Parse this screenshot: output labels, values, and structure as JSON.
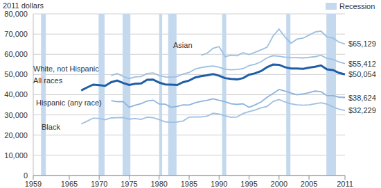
{
  "chart_data": {
    "type": "line",
    "y_label": "2011 dollars",
    "x": [
      1967,
      1968,
      1969,
      1970,
      1971,
      1972,
      1973,
      1974,
      1975,
      1976,
      1977,
      1978,
      1979,
      1980,
      1981,
      1982,
      1983,
      1984,
      1985,
      1986,
      1987,
      1988,
      1989,
      1990,
      1991,
      1992,
      1993,
      1994,
      1995,
      1996,
      1997,
      1998,
      1999,
      2000,
      2001,
      2002,
      2003,
      2004,
      2005,
      2006,
      2007,
      2008,
      2009,
      2010,
      2011
    ],
    "xlim": [
      1959,
      2011
    ],
    "xticks": [
      1959,
      1965,
      1970,
      1975,
      1980,
      1985,
      1990,
      1995,
      2000,
      2005,
      2011
    ],
    "ylim": [
      0,
      80000
    ],
    "yticks": [
      0,
      {
        "value": 10000,
        "label": "10,000"
      },
      {
        "value": 20000,
        "label": "20,000"
      },
      {
        "value": 30000,
        "label": "30,000"
      },
      {
        "value": 40000,
        "label": "40,000"
      },
      {
        "value": 50000,
        "label": "50,000"
      },
      {
        "value": 60000,
        "label": "60,000"
      },
      {
        "value": 70000,
        "label": "70,000"
      },
      {
        "value": 80000,
        "label": "80,000"
      }
    ],
    "grid": true,
    "recessions": {
      "name": "Recession",
      "color": "#c5d9ee",
      "periods": [
        [
          1960.3,
          1961.1
        ],
        [
          1969.9,
          1970.9
        ],
        [
          1973.9,
          1975.2
        ],
        [
          1980.0,
          1980.5
        ],
        [
          1981.5,
          1982.9
        ],
        [
          1990.5,
          1991.2
        ],
        [
          2001.2,
          2001.9
        ],
        [
          2007.9,
          2009.5
        ]
      ]
    },
    "series": [
      {
        "name": "Asian",
        "color": "#9dbfe3",
        "line_style": "thin",
        "values": [
          null,
          null,
          null,
          null,
          null,
          null,
          null,
          null,
          null,
          null,
          null,
          null,
          null,
          null,
          null,
          null,
          null,
          null,
          null,
          null,
          59500,
          60500,
          63000,
          63800,
          58800,
          59500,
          59300,
          60800,
          59900,
          61000,
          62200,
          63500,
          69000,
          72500,
          68500,
          65500,
          67500,
          68000,
          69500,
          71000,
          71500,
          68500,
          68000,
          66000,
          65129
        ],
        "value_labels": [
          null,
          null,
          null,
          null,
          null,
          null,
          null,
          null,
          null,
          null,
          null,
          null,
          null,
          null,
          null,
          null,
          null,
          null,
          null,
          null,
          null,
          null,
          null,
          null,
          null,
          null,
          null,
          null,
          null,
          null,
          null,
          null,
          null,
          null,
          null,
          null,
          null,
          null,
          null,
          null,
          null,
          null,
          null,
          null,
          "$65,129"
        ]
      },
      {
        "name": "White, not Hispanic",
        "color": "#9dbfe3",
        "line_style": "thin",
        "values": [
          null,
          null,
          null,
          null,
          null,
          49500,
          50500,
          49000,
          48000,
          48800,
          49000,
          50500,
          50800,
          49500,
          48800,
          48600,
          49000,
          50300,
          51000,
          52700,
          53400,
          53900,
          54200,
          53600,
          52600,
          52300,
          52500,
          52900,
          54400,
          55100,
          56300,
          58300,
          59300,
          59000,
          58600,
          58400,
          58300,
          58200,
          58500,
          58800,
          59500,
          58000,
          57500,
          56200,
          55412
        ],
        "value_labels": [
          null,
          null,
          null,
          null,
          null,
          null,
          null,
          null,
          null,
          null,
          null,
          null,
          null,
          null,
          null,
          null,
          null,
          null,
          null,
          null,
          null,
          null,
          null,
          null,
          null,
          null,
          null,
          null,
          null,
          null,
          null,
          null,
          null,
          null,
          null,
          null,
          null,
          null,
          null,
          null,
          null,
          null,
          null,
          null,
          "$55,412"
        ]
      },
      {
        "name": "Hispanic (any race)",
        "color": "#8db3dc",
        "line_style": "thin",
        "values": [
          null,
          null,
          null,
          null,
          null,
          37000,
          36500,
          36600,
          33800,
          34800,
          35600,
          36900,
          37300,
          35400,
          35300,
          33800,
          34200,
          35000,
          34900,
          36000,
          36700,
          37200,
          38000,
          37200,
          36500,
          35500,
          35200,
          35500,
          33700,
          35000,
          36400,
          38700,
          40600,
          42600,
          41800,
          40800,
          40000,
          40400,
          41000,
          41800,
          41500,
          39500,
          39500,
          38800,
          38624
        ],
        "value_labels": [
          null,
          null,
          null,
          null,
          null,
          null,
          null,
          null,
          null,
          null,
          null,
          null,
          null,
          null,
          null,
          null,
          null,
          null,
          null,
          null,
          null,
          null,
          null,
          null,
          null,
          null,
          null,
          null,
          null,
          null,
          null,
          null,
          null,
          null,
          null,
          null,
          null,
          null,
          null,
          null,
          null,
          null,
          null,
          null,
          "$38,624"
        ]
      },
      {
        "name": "Black",
        "color": "#9dbfe3",
        "line_style": "thin",
        "values": [
          25500,
          26900,
          28400,
          28300,
          27600,
          28500,
          28600,
          28700,
          27900,
          28200,
          27800,
          28900,
          28600,
          27700,
          26600,
          26300,
          26500,
          27000,
          28900,
          29000,
          29000,
          29400,
          30800,
          30400,
          29600,
          28800,
          29000,
          30700,
          31600,
          32400,
          33500,
          34200,
          36600,
          37600,
          36400,
          35500,
          35000,
          34800,
          35000,
          35500,
          36000,
          35300,
          34000,
          32800,
          32229
        ],
        "value_labels": [
          null,
          null,
          null,
          null,
          null,
          null,
          null,
          null,
          null,
          null,
          null,
          null,
          null,
          null,
          null,
          null,
          null,
          null,
          null,
          null,
          null,
          null,
          null,
          null,
          null,
          null,
          null,
          null,
          null,
          null,
          null,
          null,
          null,
          null,
          null,
          null,
          null,
          null,
          null,
          null,
          null,
          null,
          null,
          null,
          "$32,229"
        ]
      },
      {
        "name": "All races",
        "color": "#1e5ea8",
        "line_style": "thick",
        "values": [
          42100,
          43600,
          45000,
          44700,
          44400,
          46200,
          47000,
          45800,
          44800,
          45400,
          45600,
          47400,
          47500,
          46000,
          45100,
          45000,
          44800,
          46200,
          47000,
          48500,
          49200,
          49600,
          50200,
          49400,
          48200,
          47800,
          47600,
          48200,
          49900,
          50600,
          51700,
          53600,
          54900,
          54800,
          53600,
          53000,
          53000,
          52800,
          53400,
          53800,
          54500,
          52500,
          52200,
          50800,
          50054
        ],
        "value_labels": [
          null,
          null,
          null,
          null,
          null,
          null,
          null,
          null,
          null,
          null,
          null,
          null,
          null,
          null,
          null,
          null,
          null,
          null,
          null,
          null,
          null,
          null,
          null,
          null,
          null,
          null,
          null,
          null,
          null,
          null,
          null,
          null,
          null,
          null,
          null,
          null,
          null,
          null,
          null,
          null,
          null,
          null,
          null,
          null,
          "$50,054"
        ]
      }
    ]
  }
}
